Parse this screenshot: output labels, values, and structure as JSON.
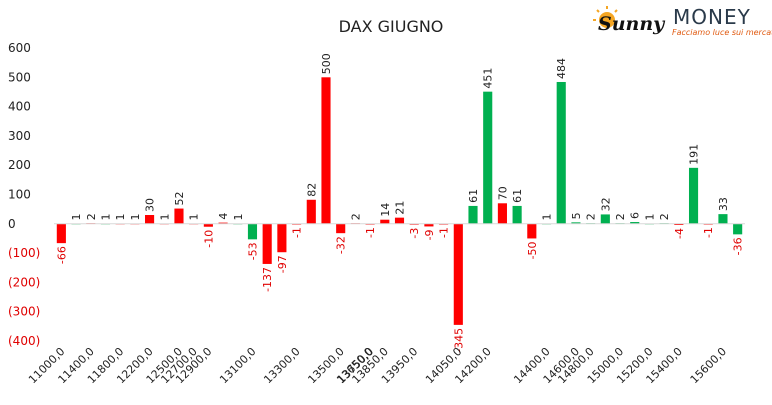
{
  "logo": {
    "word1": "Sunny",
    "word2": "MONEY",
    "tagline": "Facciamo luce sui mercati",
    "sun_color": "#f5a623",
    "tag_color": "#e05a10"
  },
  "chart_data": {
    "type": "bar",
    "title": "DAX GIUGNO",
    "xlabel": "",
    "ylabel": "",
    "ylim": [
      -400,
      600
    ],
    "yticks": [
      "600",
      "500",
      "400",
      "300",
      "200",
      "100",
      "0",
      "(100)",
      "(200)",
      "(300)",
      "(400)"
    ],
    "ytick_values": [
      600,
      500,
      400,
      300,
      200,
      100,
      0,
      -100,
      -200,
      -300,
      -400
    ],
    "grid": false,
    "legend": "none",
    "colors": {
      "call": "#00b050",
      "put": "#ff0000",
      "neg_label": "#e00000",
      "pos_label": "#222222"
    },
    "x_tick_labels": [
      "11000,0",
      "11400,0",
      "11800,0",
      "12200,0",
      "12500,0",
      "12700,0",
      "12900,0",
      "13100,0",
      "13300,0",
      "13500,0",
      "13650,0",
      "13750,0",
      "13850,0",
      "13950,0",
      "14050,0",
      "14200,0",
      "14400,0",
      "14600,0",
      "14800,0",
      "15000,0",
      "15200,0",
      "15400,0",
      "15600,0"
    ],
    "bars": [
      {
        "g": 0,
        "s": "put",
        "v": -66
      },
      {
        "g": 0,
        "s": "call",
        "v": 1
      },
      {
        "g": 1,
        "s": "put",
        "v": 2
      },
      {
        "g": 1,
        "s": "call",
        "v": 1
      },
      {
        "g": 2,
        "s": "put",
        "v": 1
      },
      {
        "g": 2,
        "s": "put",
        "v": 1
      },
      {
        "g": 3,
        "s": "put",
        "v": 30
      },
      {
        "g": 3,
        "s": "put",
        "v": 1
      },
      {
        "g": 4,
        "s": "put",
        "v": 52
      },
      {
        "g": 5,
        "s": "put",
        "v": 1
      },
      {
        "g": 6,
        "s": "put",
        "v": -10
      },
      {
        "g": 6,
        "s": "put",
        "v": 4
      },
      {
        "g": 6,
        "s": "call",
        "v": 1
      },
      {
        "g": 7,
        "s": "call",
        "v": -53
      },
      {
        "g": 7,
        "s": "put",
        "v": -137
      },
      {
        "g": 7,
        "s": "put",
        "v": -97
      },
      {
        "g": 8,
        "s": "put",
        "v": -1
      },
      {
        "g": 8,
        "s": "put",
        "v": 82
      },
      {
        "g": 8,
        "s": "put",
        "v": 500
      },
      {
        "g": 9,
        "s": "put",
        "v": -32
      },
      {
        "g": 9,
        "s": "put",
        "v": 2
      },
      {
        "g": 11,
        "s": "put",
        "v": -1
      },
      {
        "g": 12,
        "s": "put",
        "v": 14
      },
      {
        "g": 12,
        "s": "put",
        "v": 21
      },
      {
        "g": 13,
        "s": "put",
        "v": -3
      },
      {
        "g": 13,
        "s": "put",
        "v": -9
      },
      {
        "g": 13,
        "s": "put",
        "v": -1
      },
      {
        "g": 14,
        "s": "put",
        "v": -345
      },
      {
        "g": 14,
        "s": "call",
        "v": 61
      },
      {
        "g": 15,
        "s": "call",
        "v": 451
      },
      {
        "g": 15,
        "s": "put",
        "v": 70
      },
      {
        "g": 15,
        "s": "call",
        "v": 61
      },
      {
        "g": 15,
        "s": "put",
        "v": -50
      },
      {
        "g": 16,
        "s": "call",
        "v": 1
      },
      {
        "g": 16,
        "s": "call",
        "v": 484
      },
      {
        "g": 17,
        "s": "call",
        "v": 5
      },
      {
        "g": 18,
        "s": "call",
        "v": 2
      },
      {
        "g": 18,
        "s": "call",
        "v": 32
      },
      {
        "g": 19,
        "s": "call",
        "v": 2
      },
      {
        "g": 19,
        "s": "call",
        "v": 6
      },
      {
        "g": 20,
        "s": "call",
        "v": 1
      },
      {
        "g": 20,
        "s": "call",
        "v": 2
      },
      {
        "g": 21,
        "s": "put",
        "v": -4
      },
      {
        "g": 21,
        "s": "call",
        "v": 191
      },
      {
        "g": 21,
        "s": "put",
        "v": -1
      },
      {
        "g": 22,
        "s": "call",
        "v": 33
      },
      {
        "g": 22,
        "s": "call",
        "v": -36
      }
    ]
  }
}
